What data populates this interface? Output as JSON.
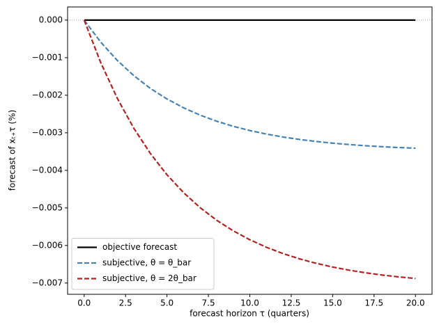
{
  "chart_data": {
    "type": "line",
    "x_label": "forecast horizon τ (quarters)",
    "y_label": "forecast of xₜ₊τ (%)",
    "x": [
      0,
      1,
      2,
      3,
      4,
      5,
      6,
      7,
      8,
      9,
      10,
      11,
      12,
      13,
      14,
      15,
      16,
      17,
      18,
      19,
      20
    ],
    "series": [
      {
        "name": "objective forecast",
        "color": "#000000",
        "dash": "solid",
        "values": [
          0,
          0,
          0,
          0,
          0,
          0,
          0,
          0,
          0,
          0,
          0,
          0,
          0,
          0,
          0,
          0,
          0,
          0,
          0,
          0,
          0
        ]
      },
      {
        "name": "subjective, θ = θ_bar",
        "color": "#4682b4",
        "dash": "dashed",
        "values": [
          0,
          -0.000586,
          -0.001074,
          -0.00148,
          -0.001819,
          -0.0021,
          -0.002334,
          -0.00253,
          -0.002692,
          -0.002828,
          -0.00294,
          -0.003034,
          -0.003112,
          -0.003177,
          -0.003231,
          -0.003276,
          -0.003313,
          -0.003345,
          -0.003371,
          -0.003393,
          -0.00341
        ]
      },
      {
        "name": "subjective, θ = 2θ_bar",
        "color": "#b22222",
        "dash": "dashed",
        "values": [
          0,
          -0.001131,
          -0.002082,
          -0.002881,
          -0.003553,
          -0.004118,
          -0.004593,
          -0.004993,
          -0.005329,
          -0.00561,
          -0.005848,
          -0.006047,
          -0.006215,
          -0.006356,
          -0.006474,
          -0.006574,
          -0.006658,
          -0.006728,
          -0.006788,
          -0.006837,
          -0.006879
        ]
      }
    ],
    "xlim": [
      -1,
      21
    ],
    "xticks": [
      {
        "value": 0,
        "label": "0.0"
      },
      2.5,
      {
        "value": 5,
        "label": "5.0"
      },
      7.5,
      {
        "value": 10,
        "label": "10.0"
      },
      12.5,
      {
        "value": 15,
        "label": "15.0"
      },
      17.5,
      {
        "value": 20,
        "label": "20.0"
      }
    ],
    "ylim": [
      -0.0073,
      0.00035
    ],
    "yticks": [
      {
        "value": 0,
        "label": "0.000"
      },
      {
        "value": -0.001,
        "label": "−0.001"
      },
      {
        "value": -0.002,
        "label": "−0.002"
      },
      {
        "value": -0.003,
        "label": "−0.003"
      },
      {
        "value": -0.004,
        "label": "−0.004"
      },
      {
        "value": -0.005,
        "label": "−0.005"
      },
      {
        "value": -0.006,
        "label": "−0.006"
      },
      {
        "value": -0.007,
        "label": "−0.007"
      }
    ],
    "legend": "lower left"
  }
}
